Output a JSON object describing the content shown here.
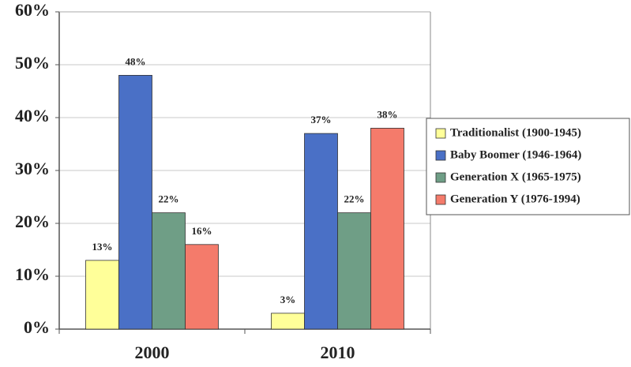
{
  "chart_data": {
    "type": "bar",
    "categories": [
      "2000",
      "2010"
    ],
    "series": [
      {
        "name": "Traditionalist (1900-1945)",
        "color": "#ffff99",
        "values": [
          13,
          3
        ],
        "value_labels": [
          "13%",
          "3%"
        ]
      },
      {
        "name": "Baby Boomer (1946-1964)",
        "color": "#4a70c6",
        "values": [
          48,
          37
        ],
        "value_labels": [
          "48%",
          "37%"
        ]
      },
      {
        "name": "Generation X (1965-1975)",
        "color": "#6f9e86",
        "values": [
          22,
          22
        ],
        "value_labels": [
          "22%",
          "22%"
        ]
      },
      {
        "name": "Generation Y (1976-1994)",
        "color": "#f47b6b",
        "values": [
          16,
          38
        ],
        "value_labels": [
          "16%",
          "38%"
        ]
      }
    ],
    "ylim": [
      0,
      60
    ],
    "yticks": [
      {
        "value": 0,
        "label": "0%"
      },
      {
        "value": 10,
        "label": "10%"
      },
      {
        "value": 20,
        "label": "20%"
      },
      {
        "value": 30,
        "label": "30%"
      },
      {
        "value": 40,
        "label": "40%"
      },
      {
        "value": 50,
        "label": "50%"
      },
      {
        "value": 60,
        "label": "60%"
      }
    ],
    "grid": true,
    "legend": "right"
  }
}
